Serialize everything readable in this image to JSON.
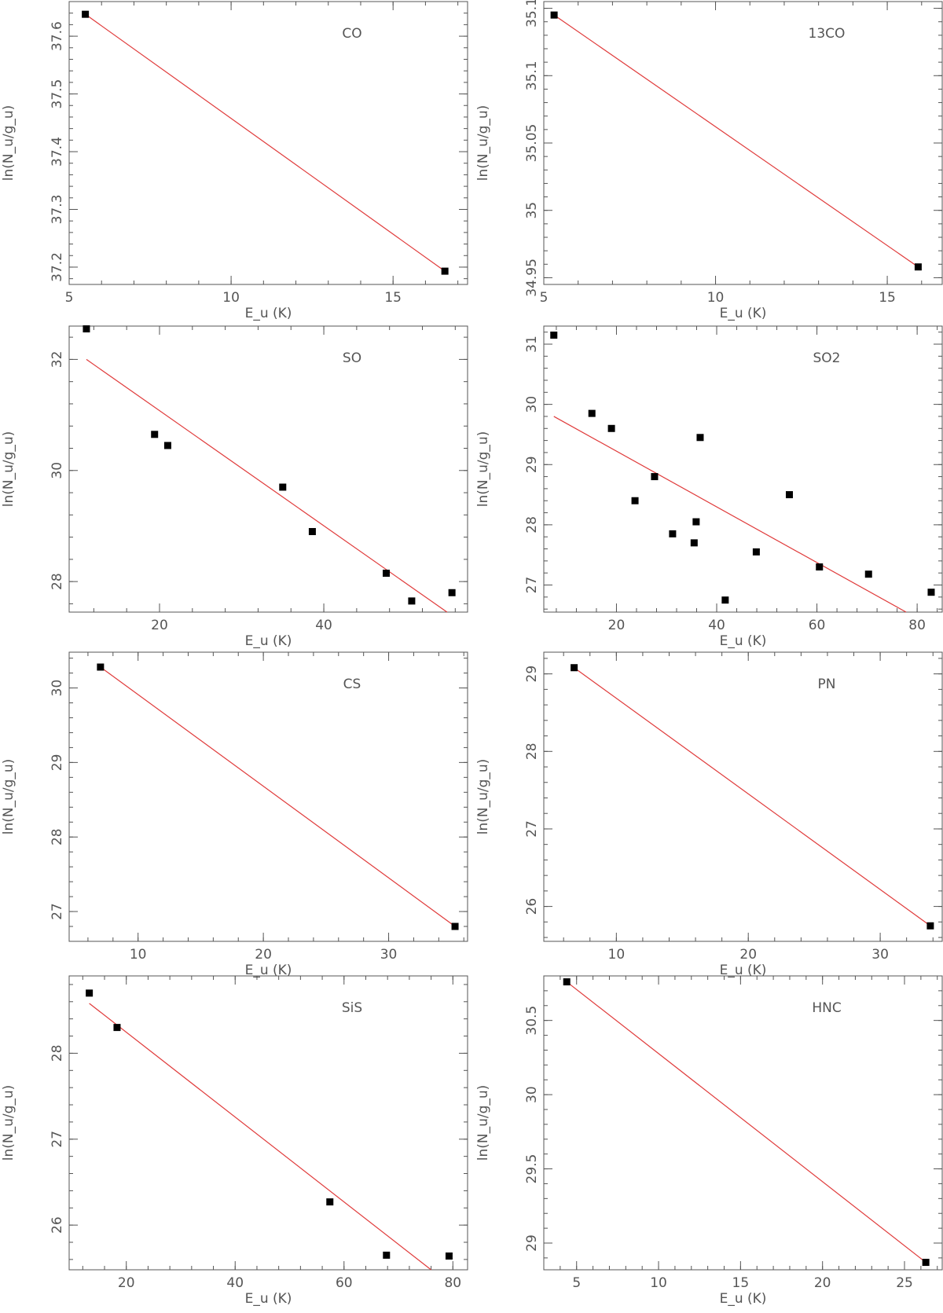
{
  "chart_data": [
    {
      "type": "scatter",
      "title": "CO",
      "xlabel": "E_u (K)",
      "ylabel": "ln(N_u/g_u)",
      "xlim": [
        5,
        17.3
      ],
      "ylim": [
        37.17,
        37.66
      ],
      "xticks": [
        5,
        10,
        15
      ],
      "yticks": [
        37.2,
        37.3,
        37.4,
        37.5,
        37.6
      ],
      "points": [
        {
          "x": 5.5,
          "y": 37.638
        },
        {
          "x": 16.6,
          "y": 37.193
        }
      ],
      "fit": [
        {
          "x": 5.5,
          "y": 37.638
        },
        {
          "x": 16.6,
          "y": 37.193
        }
      ],
      "grid": false
    },
    {
      "type": "scatter",
      "title": "13CO",
      "xlabel": "E_u (K)",
      "ylabel": "ln(N_u/g_u)",
      "xlim": [
        5,
        16.6
      ],
      "ylim": [
        34.945,
        35.155
      ],
      "xticks": [
        5,
        10,
        15
      ],
      "yticks": [
        34.95,
        35,
        35.05,
        35.1,
        35.15
      ],
      "points": [
        {
          "x": 5.3,
          "y": 35.145
        },
        {
          "x": 15.9,
          "y": 34.958
        }
      ],
      "fit": [
        {
          "x": 5.3,
          "y": 35.145
        },
        {
          "x": 15.9,
          "y": 34.958
        }
      ],
      "grid": false
    },
    {
      "type": "scatter",
      "title": "SO",
      "xlabel": "E_u (K)",
      "ylabel": "ln(N_u/g_u)",
      "xlim": [
        9,
        57.5
      ],
      "ylim": [
        27.45,
        32.6
      ],
      "xticks": [
        20,
        40
      ],
      "yticks": [
        28,
        30,
        32
      ],
      "points": [
        {
          "x": 11.1,
          "y": 32.55
        },
        {
          "x": 19.4,
          "y": 30.65
        },
        {
          "x": 21.0,
          "y": 30.45
        },
        {
          "x": 35.0,
          "y": 29.7
        },
        {
          "x": 38.6,
          "y": 28.9
        },
        {
          "x": 47.6,
          "y": 28.15
        },
        {
          "x": 50.7,
          "y": 27.65
        },
        {
          "x": 55.6,
          "y": 27.8
        }
      ],
      "fit": [
        {
          "x": 11.1,
          "y": 32.0
        },
        {
          "x": 55.0,
          "y": 27.45
        }
      ],
      "grid": false
    },
    {
      "type": "scatter",
      "title": "SO2",
      "xlabel": "E_u (K)",
      "ylabel": "ln(N_u/g_u)",
      "xlim": [
        5.5,
        85
      ],
      "ylim": [
        26.55,
        31.3
      ],
      "xticks": [
        20,
        40,
        60,
        80
      ],
      "yticks": [
        27,
        28,
        29,
        30,
        31
      ],
      "points": [
        {
          "x": 7.5,
          "y": 31.15
        },
        {
          "x": 15.1,
          "y": 29.85
        },
        {
          "x": 19.0,
          "y": 29.6
        },
        {
          "x": 36.7,
          "y": 29.45
        },
        {
          "x": 27.6,
          "y": 28.8
        },
        {
          "x": 23.7,
          "y": 28.4
        },
        {
          "x": 54.5,
          "y": 28.5
        },
        {
          "x": 35.9,
          "y": 28.05
        },
        {
          "x": 31.2,
          "y": 27.85
        },
        {
          "x": 35.5,
          "y": 27.7
        },
        {
          "x": 47.9,
          "y": 27.55
        },
        {
          "x": 60.5,
          "y": 27.3
        },
        {
          "x": 70.3,
          "y": 27.18
        },
        {
          "x": 41.7,
          "y": 26.75
        },
        {
          "x": 82.8,
          "y": 26.88
        }
      ],
      "fit": [
        {
          "x": 7.5,
          "y": 29.8
        },
        {
          "x": 77.8,
          "y": 26.55
        }
      ],
      "grid": false
    },
    {
      "type": "scatter",
      "title": "CS",
      "xlabel": "E_u (K)",
      "ylabel": "ln(N_u/g_u)",
      "xlim": [
        4.5,
        36.3
      ],
      "ylim": [
        26.6,
        30.48
      ],
      "xticks": [
        10,
        20,
        30
      ],
      "yticks": [
        27,
        28,
        29,
        30
      ],
      "points": [
        {
          "x": 7.0,
          "y": 30.28
        },
        {
          "x": 35.3,
          "y": 26.8
        }
      ],
      "fit": [
        {
          "x": 7.0,
          "y": 30.28
        },
        {
          "x": 35.3,
          "y": 26.8
        }
      ],
      "grid": false
    },
    {
      "type": "scatter",
      "title": "PN",
      "xlabel": "E_u (K)",
      "ylabel": "ln(N_u/g_u)",
      "xlim": [
        4.5,
        34.7
      ],
      "ylim": [
        25.55,
        29.28
      ],
      "xticks": [
        10,
        20,
        30
      ],
      "yticks": [
        26,
        27,
        28,
        29
      ],
      "points": [
        {
          "x": 6.8,
          "y": 29.08
        },
        {
          "x": 33.8,
          "y": 25.75
        }
      ],
      "fit": [
        {
          "x": 6.8,
          "y": 29.08
        },
        {
          "x": 33.8,
          "y": 25.75
        }
      ],
      "grid": false
    },
    {
      "type": "scatter",
      "title": "SiS",
      "xlabel": "E_u (K)",
      "ylabel": "ln(N_u/g_u)",
      "xlim": [
        9.5,
        82.7
      ],
      "ylim": [
        25.48,
        28.9
      ],
      "xticks": [
        20,
        40,
        60,
        80
      ],
      "yticks": [
        26,
        27,
        28
      ],
      "points": [
        {
          "x": 13.2,
          "y": 28.7
        },
        {
          "x": 18.3,
          "y": 28.3
        },
        {
          "x": 57.4,
          "y": 26.27
        },
        {
          "x": 67.8,
          "y": 25.65
        },
        {
          "x": 79.3,
          "y": 25.64
        }
      ],
      "fit": [
        {
          "x": 13.2,
          "y": 28.58
        },
        {
          "x": 76.0,
          "y": 25.48
        }
      ],
      "grid": false
    },
    {
      "type": "scatter",
      "title": "HNC",
      "xlabel": "E_u (K)",
      "ylabel": "ln(N_u/g_u)",
      "xlim": [
        3,
        27.3
      ],
      "ylim": [
        28.82,
        30.8
      ],
      "xticks": [
        5,
        10,
        15,
        20,
        25
      ],
      "yticks": [
        29,
        29.5,
        30,
        30.5
      ],
      "points": [
        {
          "x": 4.4,
          "y": 30.76
        },
        {
          "x": 26.3,
          "y": 28.87
        }
      ],
      "fit": [
        {
          "x": 4.4,
          "y": 30.76
        },
        {
          "x": 26.3,
          "y": 28.87
        }
      ],
      "grid": false
    }
  ]
}
